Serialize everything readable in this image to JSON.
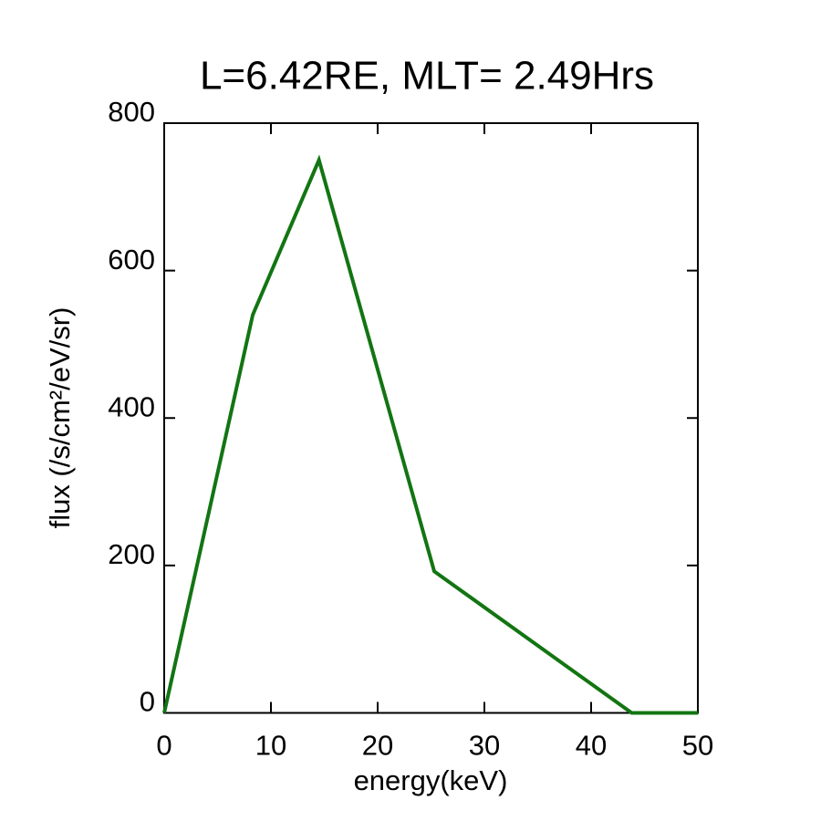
{
  "chart_data": {
    "type": "line",
    "title": "L=6.42RE, MLT= 2.49Hrs",
    "x_label": "energy(keV)",
    "y_label": "flux (/s/cm²/eV/sr)",
    "x": [
      0,
      8.3,
      14.5,
      25.3,
      43.8,
      50
    ],
    "series": [
      {
        "color": "#127512",
        "values": [
          0,
          540,
          750,
          192,
          0,
          0
        ]
      }
    ],
    "xlim": [
      0,
      50
    ],
    "xticks": [
      0,
      10,
      20,
      30,
      40,
      50
    ],
    "ylim": [
      0,
      800
    ],
    "yticks": [
      0,
      200,
      400,
      600,
      800
    ],
    "grid": false
  }
}
